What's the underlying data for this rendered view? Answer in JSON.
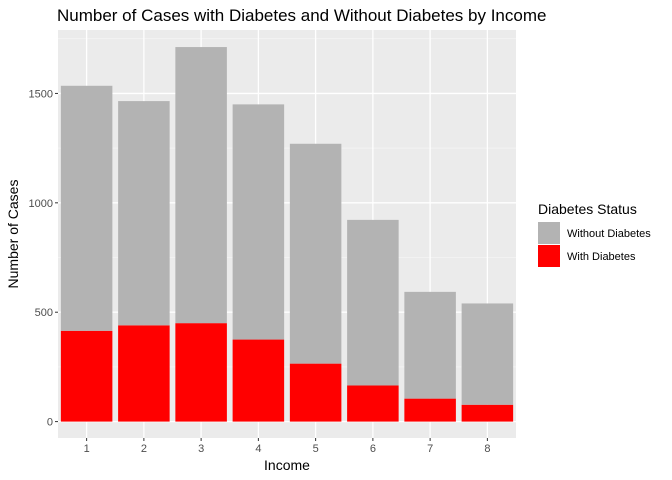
{
  "chart_data": {
    "type": "bar",
    "stacked": true,
    "title": "Number of Cases with Diabetes and Without Diabetes by Income",
    "xlabel": "Income",
    "ylabel": "Number of Cases",
    "categories": [
      "1",
      "2",
      "3",
      "4",
      "5",
      "6",
      "7",
      "8"
    ],
    "series": [
      {
        "name": "Without Diabetes",
        "values": [
          1120,
          1025,
          1262,
          1075,
          1005,
          757,
          488,
          463
        ],
        "color": "#b3b3b3"
      },
      {
        "name": "With Diabetes",
        "values": [
          415,
          440,
          450,
          375,
          265,
          165,
          105,
          77
        ],
        "color": "#ff0000"
      }
    ],
    "totals": [
      1535,
      1465,
      1712,
      1450,
      1270,
      922,
      593,
      540
    ],
    "ylim": [
      -75,
      1790
    ],
    "yticks": [
      0,
      500,
      1000,
      1500
    ],
    "grid": true,
    "legend": {
      "title": "Diabetes Status",
      "position": "right"
    }
  }
}
